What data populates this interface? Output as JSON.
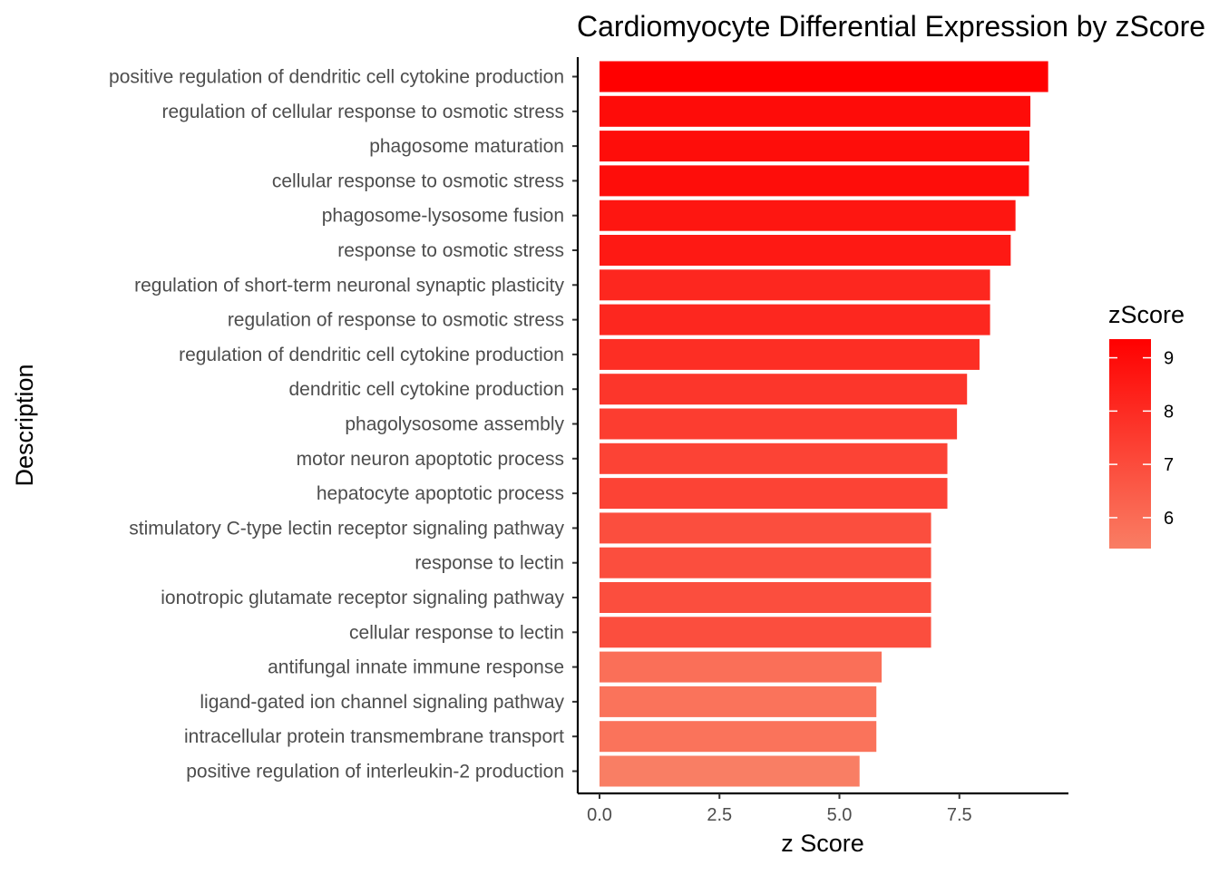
{
  "chart_data": {
    "type": "bar",
    "orientation": "horizontal",
    "title": "Cardiomyocyte Differential Expression by zScore",
    "xlabel": "z Score",
    "ylabel": "Description",
    "xlim": [
      0,
      9.8
    ],
    "xticks": [
      0.0,
      2.5,
      5.0,
      7.5
    ],
    "xtick_labels": [
      "0.0",
      "2.5",
      "5.0",
      "7.5"
    ],
    "grid": false,
    "categories": [
      "positive regulation of dendritic cell cytokine production",
      "regulation of cellular response to osmotic stress",
      "phagosome maturation",
      "cellular response to osmotic stress",
      "phagosome-lysosome fusion",
      "response to osmotic stress",
      "regulation of short-term neuronal synaptic plasticity",
      "regulation of response to osmotic stress",
      "regulation of dendritic cell cytokine production",
      "dendritic cell cytokine production",
      "phagolysosome assembly",
      "motor neuron apoptotic process",
      "hepatocyte apoptotic process",
      "stimulatory C-type lectin receptor signaling pathway",
      "response to lectin",
      "ionotropic glutamate receptor signaling pathway",
      "cellular response to lectin",
      "antifungal innate immune response",
      "ligand-gated ion channel signaling pathway",
      "intracellular protein transmembrane transport",
      "positive regulation of interleukin-2 production"
    ],
    "values": [
      9.35,
      8.98,
      8.96,
      8.95,
      8.67,
      8.57,
      8.14,
      8.14,
      7.92,
      7.66,
      7.45,
      7.25,
      7.25,
      6.91,
      6.91,
      6.91,
      6.91,
      5.88,
      5.77,
      5.77,
      5.42
    ],
    "legend": {
      "title": "zScore",
      "position": "right",
      "range": [
        5.42,
        9.35
      ],
      "ticks": [
        6,
        7,
        8,
        9
      ],
      "tick_labels": [
        "6",
        "7",
        "8",
        "9"
      ],
      "color_low": "#f97e64",
      "color_high": "#ff0000"
    }
  }
}
